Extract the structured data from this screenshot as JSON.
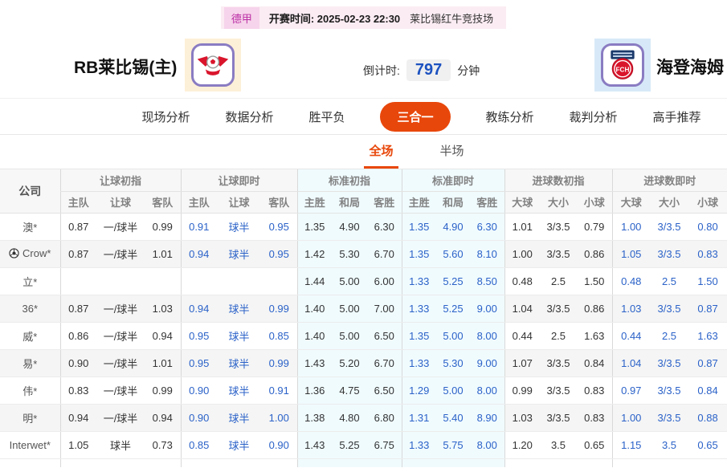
{
  "topbar": {
    "league": "德甲",
    "kickoff_label": "开赛时间:",
    "kickoff_time": "2025-02-23 22:30",
    "venue": "莱比锡红牛竞技场"
  },
  "match": {
    "home_name": "RB莱比锡(主)",
    "away_name": "海登海姆",
    "countdown_label": "倒计时:",
    "countdown_value": "797",
    "countdown_unit": "分钟"
  },
  "nav": {
    "tabs": [
      {
        "label": "现场分析",
        "active": false
      },
      {
        "label": "数据分析",
        "active": false
      },
      {
        "label": "胜平负",
        "active": false
      },
      {
        "label": "三合一",
        "active": true
      },
      {
        "label": "教练分析",
        "active": false
      },
      {
        "label": "裁判分析",
        "active": false
      },
      {
        "label": "高手推荐",
        "active": false
      }
    ]
  },
  "subtabs": [
    {
      "label": "全场",
      "active": true
    },
    {
      "label": "半场",
      "active": false
    }
  ],
  "table": {
    "company_header": "公司",
    "groups": [
      {
        "label": "让球初指",
        "cols": [
          "主队",
          "让球",
          "客队"
        ],
        "live": false,
        "tint": false
      },
      {
        "label": "让球即时",
        "cols": [
          "主队",
          "让球",
          "客队"
        ],
        "live": true,
        "tint": false
      },
      {
        "label": "标准初指",
        "cols": [
          "主胜",
          "和局",
          "客胜"
        ],
        "live": false,
        "tint": true
      },
      {
        "label": "标准即时",
        "cols": [
          "主胜",
          "和局",
          "客胜"
        ],
        "live": true,
        "tint": true
      },
      {
        "label": "进球数初指",
        "cols": [
          "大球",
          "大小",
          "小球"
        ],
        "live": false,
        "tint": false
      },
      {
        "label": "进球数即时",
        "cols": [
          "大球",
          "大小",
          "小球"
        ],
        "live": true,
        "tint": false
      }
    ],
    "rows": [
      {
        "company": "澳*",
        "has_icon": false,
        "values": [
          [
            "0.87",
            "一/球半",
            "0.99"
          ],
          [
            "0.91",
            "球半",
            "0.95"
          ],
          [
            "1.35",
            "4.90",
            "6.30"
          ],
          [
            "1.35",
            "4.90",
            "6.30"
          ],
          [
            "1.01",
            "3/3.5",
            "0.79"
          ],
          [
            "1.00",
            "3/3.5",
            "0.80"
          ]
        ]
      },
      {
        "company": "Crow*",
        "has_icon": true,
        "values": [
          [
            "0.87",
            "一/球半",
            "1.01"
          ],
          [
            "0.94",
            "球半",
            "0.95"
          ],
          [
            "1.42",
            "5.30",
            "6.70"
          ],
          [
            "1.35",
            "5.60",
            "8.10"
          ],
          [
            "1.00",
            "3/3.5",
            "0.86"
          ],
          [
            "1.05",
            "3/3.5",
            "0.83"
          ]
        ]
      },
      {
        "company": "立*",
        "has_icon": false,
        "values": [
          [
            "",
            "",
            ""
          ],
          [
            "",
            "",
            ""
          ],
          [
            "1.44",
            "5.00",
            "6.00"
          ],
          [
            "1.33",
            "5.25",
            "8.50"
          ],
          [
            "0.48",
            "2.5",
            "1.50"
          ],
          [
            "0.48",
            "2.5",
            "1.50"
          ]
        ]
      },
      {
        "company": "36*",
        "has_icon": false,
        "values": [
          [
            "0.87",
            "一/球半",
            "1.03"
          ],
          [
            "0.94",
            "球半",
            "0.99"
          ],
          [
            "1.40",
            "5.00",
            "7.00"
          ],
          [
            "1.33",
            "5.25",
            "9.00"
          ],
          [
            "1.04",
            "3/3.5",
            "0.86"
          ],
          [
            "1.03",
            "3/3.5",
            "0.87"
          ]
        ]
      },
      {
        "company": "威*",
        "has_icon": false,
        "values": [
          [
            "0.86",
            "一/球半",
            "0.94"
          ],
          [
            "0.95",
            "球半",
            "0.85"
          ],
          [
            "1.40",
            "5.00",
            "6.50"
          ],
          [
            "1.35",
            "5.00",
            "8.00"
          ],
          [
            "0.44",
            "2.5",
            "1.63"
          ],
          [
            "0.44",
            "2.5",
            "1.63"
          ]
        ]
      },
      {
        "company": "易*",
        "has_icon": false,
        "values": [
          [
            "0.90",
            "一/球半",
            "1.01"
          ],
          [
            "0.95",
            "球半",
            "0.99"
          ],
          [
            "1.43",
            "5.20",
            "6.70"
          ],
          [
            "1.33",
            "5.30",
            "9.00"
          ],
          [
            "1.07",
            "3/3.5",
            "0.84"
          ],
          [
            "1.04",
            "3/3.5",
            "0.87"
          ]
        ]
      },
      {
        "company": "伟*",
        "has_icon": false,
        "values": [
          [
            "0.83",
            "一/球半",
            "0.99"
          ],
          [
            "0.90",
            "球半",
            "0.91"
          ],
          [
            "1.36",
            "4.75",
            "6.50"
          ],
          [
            "1.29",
            "5.00",
            "8.00"
          ],
          [
            "0.99",
            "3/3.5",
            "0.83"
          ],
          [
            "0.97",
            "3/3.5",
            "0.84"
          ]
        ]
      },
      {
        "company": "明*",
        "has_icon": false,
        "values": [
          [
            "0.94",
            "一/球半",
            "0.94"
          ],
          [
            "0.90",
            "球半",
            "1.00"
          ],
          [
            "1.38",
            "4.80",
            "6.80"
          ],
          [
            "1.31",
            "5.40",
            "8.90"
          ],
          [
            "1.03",
            "3/3.5",
            "0.83"
          ],
          [
            "1.00",
            "3/3.5",
            "0.88"
          ]
        ]
      },
      {
        "company": "Interwet*",
        "has_icon": false,
        "values": [
          [
            "1.05",
            "球半",
            "0.73"
          ],
          [
            "0.85",
            "球半",
            "0.90"
          ],
          [
            "1.43",
            "5.25",
            "6.75"
          ],
          [
            "1.33",
            "5.75",
            "8.00"
          ],
          [
            "1.20",
            "3.5",
            "0.65"
          ],
          [
            "1.15",
            "3.5",
            "0.65"
          ]
        ]
      }
    ]
  },
  "colors": {
    "accent": "#e8470b",
    "live_blue": "#2b62c8",
    "standard_tint": "#f0fbfe",
    "countdown_blue": "#1d52c0",
    "league_badge_bg": "#f6d4eb",
    "league_badge_text": "#bb2fa5",
    "topbar_bg": "#fbecf3"
  }
}
